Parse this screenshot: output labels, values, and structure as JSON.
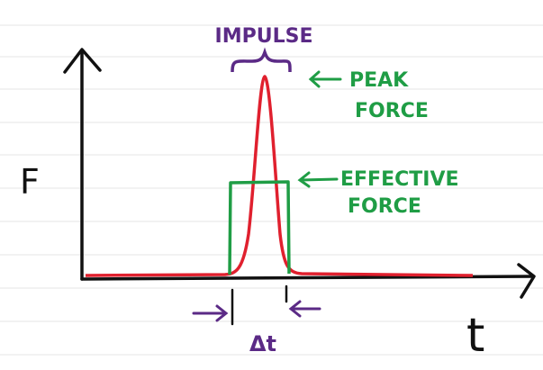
{
  "labels": {
    "impulse": "IMPULSE",
    "peak_force": [
      "PEAK",
      "FORCE"
    ],
    "effective_force": [
      "EFFECTIVE",
      "FORCE"
    ],
    "y_axis": "F",
    "x_axis": "t",
    "duration": "Δt"
  }
}
